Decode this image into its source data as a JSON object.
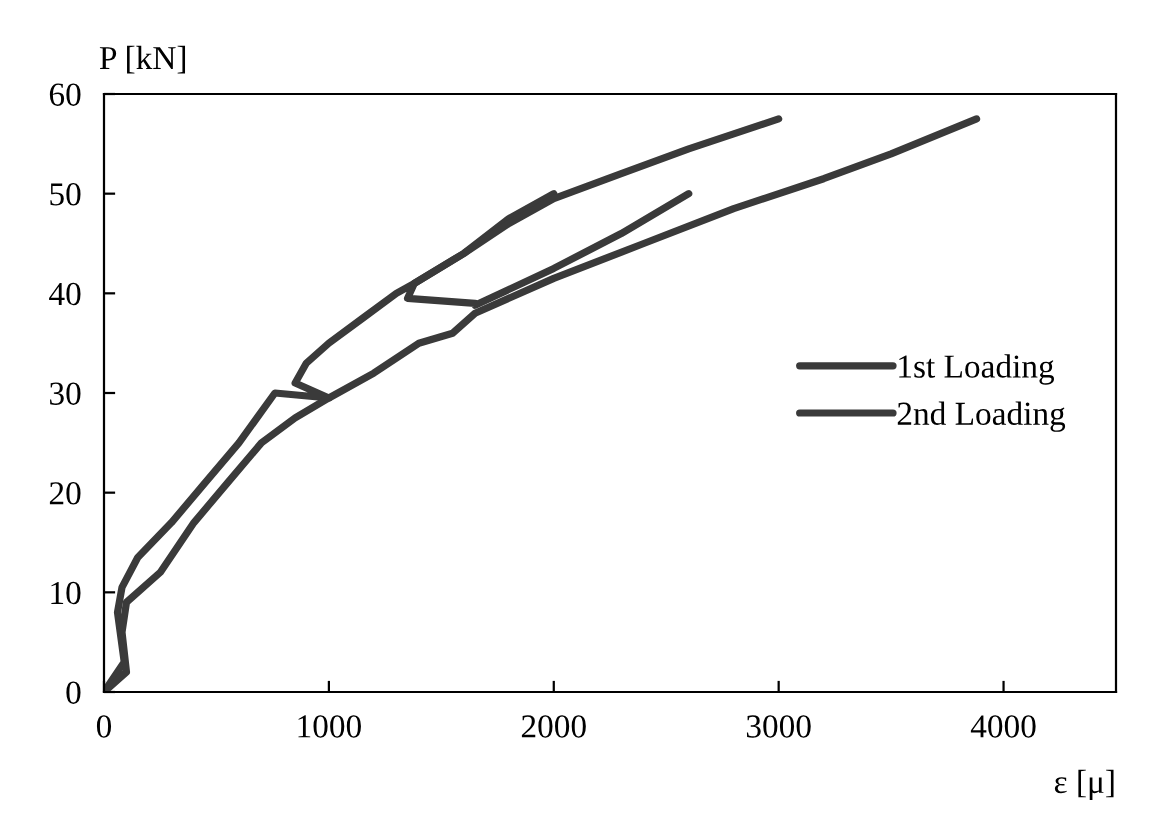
{
  "chart_data": {
    "type": "line",
    "ylabel": "P [kN]",
    "xlabel": "ε [μ]",
    "xlim": [
      0,
      4500
    ],
    "xticks": [
      0,
      1000,
      2000,
      3000,
      4000
    ],
    "ylim": [
      0,
      60
    ],
    "yticks": [
      0,
      10,
      20,
      30,
      40,
      50,
      60
    ],
    "grid": false,
    "legend": "right",
    "marker": "none",
    "line_style": "solid",
    "series": [
      {
        "name": "1st Loading",
        "color": "#3a3a3a",
        "x": [
          0,
          90,
          60,
          80,
          150,
          300,
          450,
          600,
          760,
          1000,
          850,
          900,
          1000,
          1150,
          1300,
          1380,
          1350,
          1650,
          null,
          1380,
          1600,
          1800,
          2000,
          null,
          1650,
          2000,
          2300,
          2600
        ],
        "values": [
          0,
          3,
          8,
          10.5,
          13.5,
          17,
          21,
          25,
          30,
          29.5,
          31,
          33,
          35,
          37.5,
          40,
          41,
          39.5,
          39,
          null,
          41,
          44,
          47.5,
          50,
          null,
          38.8,
          42.5,
          46,
          50
        ]
      },
      {
        "name": "2nd Loading",
        "color": "#3a3a3a",
        "x": [
          0,
          100,
          80,
          100,
          250,
          400,
          550,
          700,
          850,
          1000,
          1200,
          1400,
          1550,
          1650,
          2000,
          2400,
          2800,
          3200,
          3500,
          3880,
          null,
          1380,
          1600,
          1800,
          2000,
          2300,
          2600,
          2800,
          3000
        ],
        "values": [
          0,
          2,
          6,
          9,
          12,
          17,
          21,
          25,
          27.5,
          29.5,
          32,
          35,
          36,
          38,
          41.5,
          45,
          48.5,
          51.5,
          54,
          57.5,
          null,
          41,
          44,
          47,
          49.5,
          52,
          54.5,
          56,
          57.5
        ]
      }
    ]
  }
}
